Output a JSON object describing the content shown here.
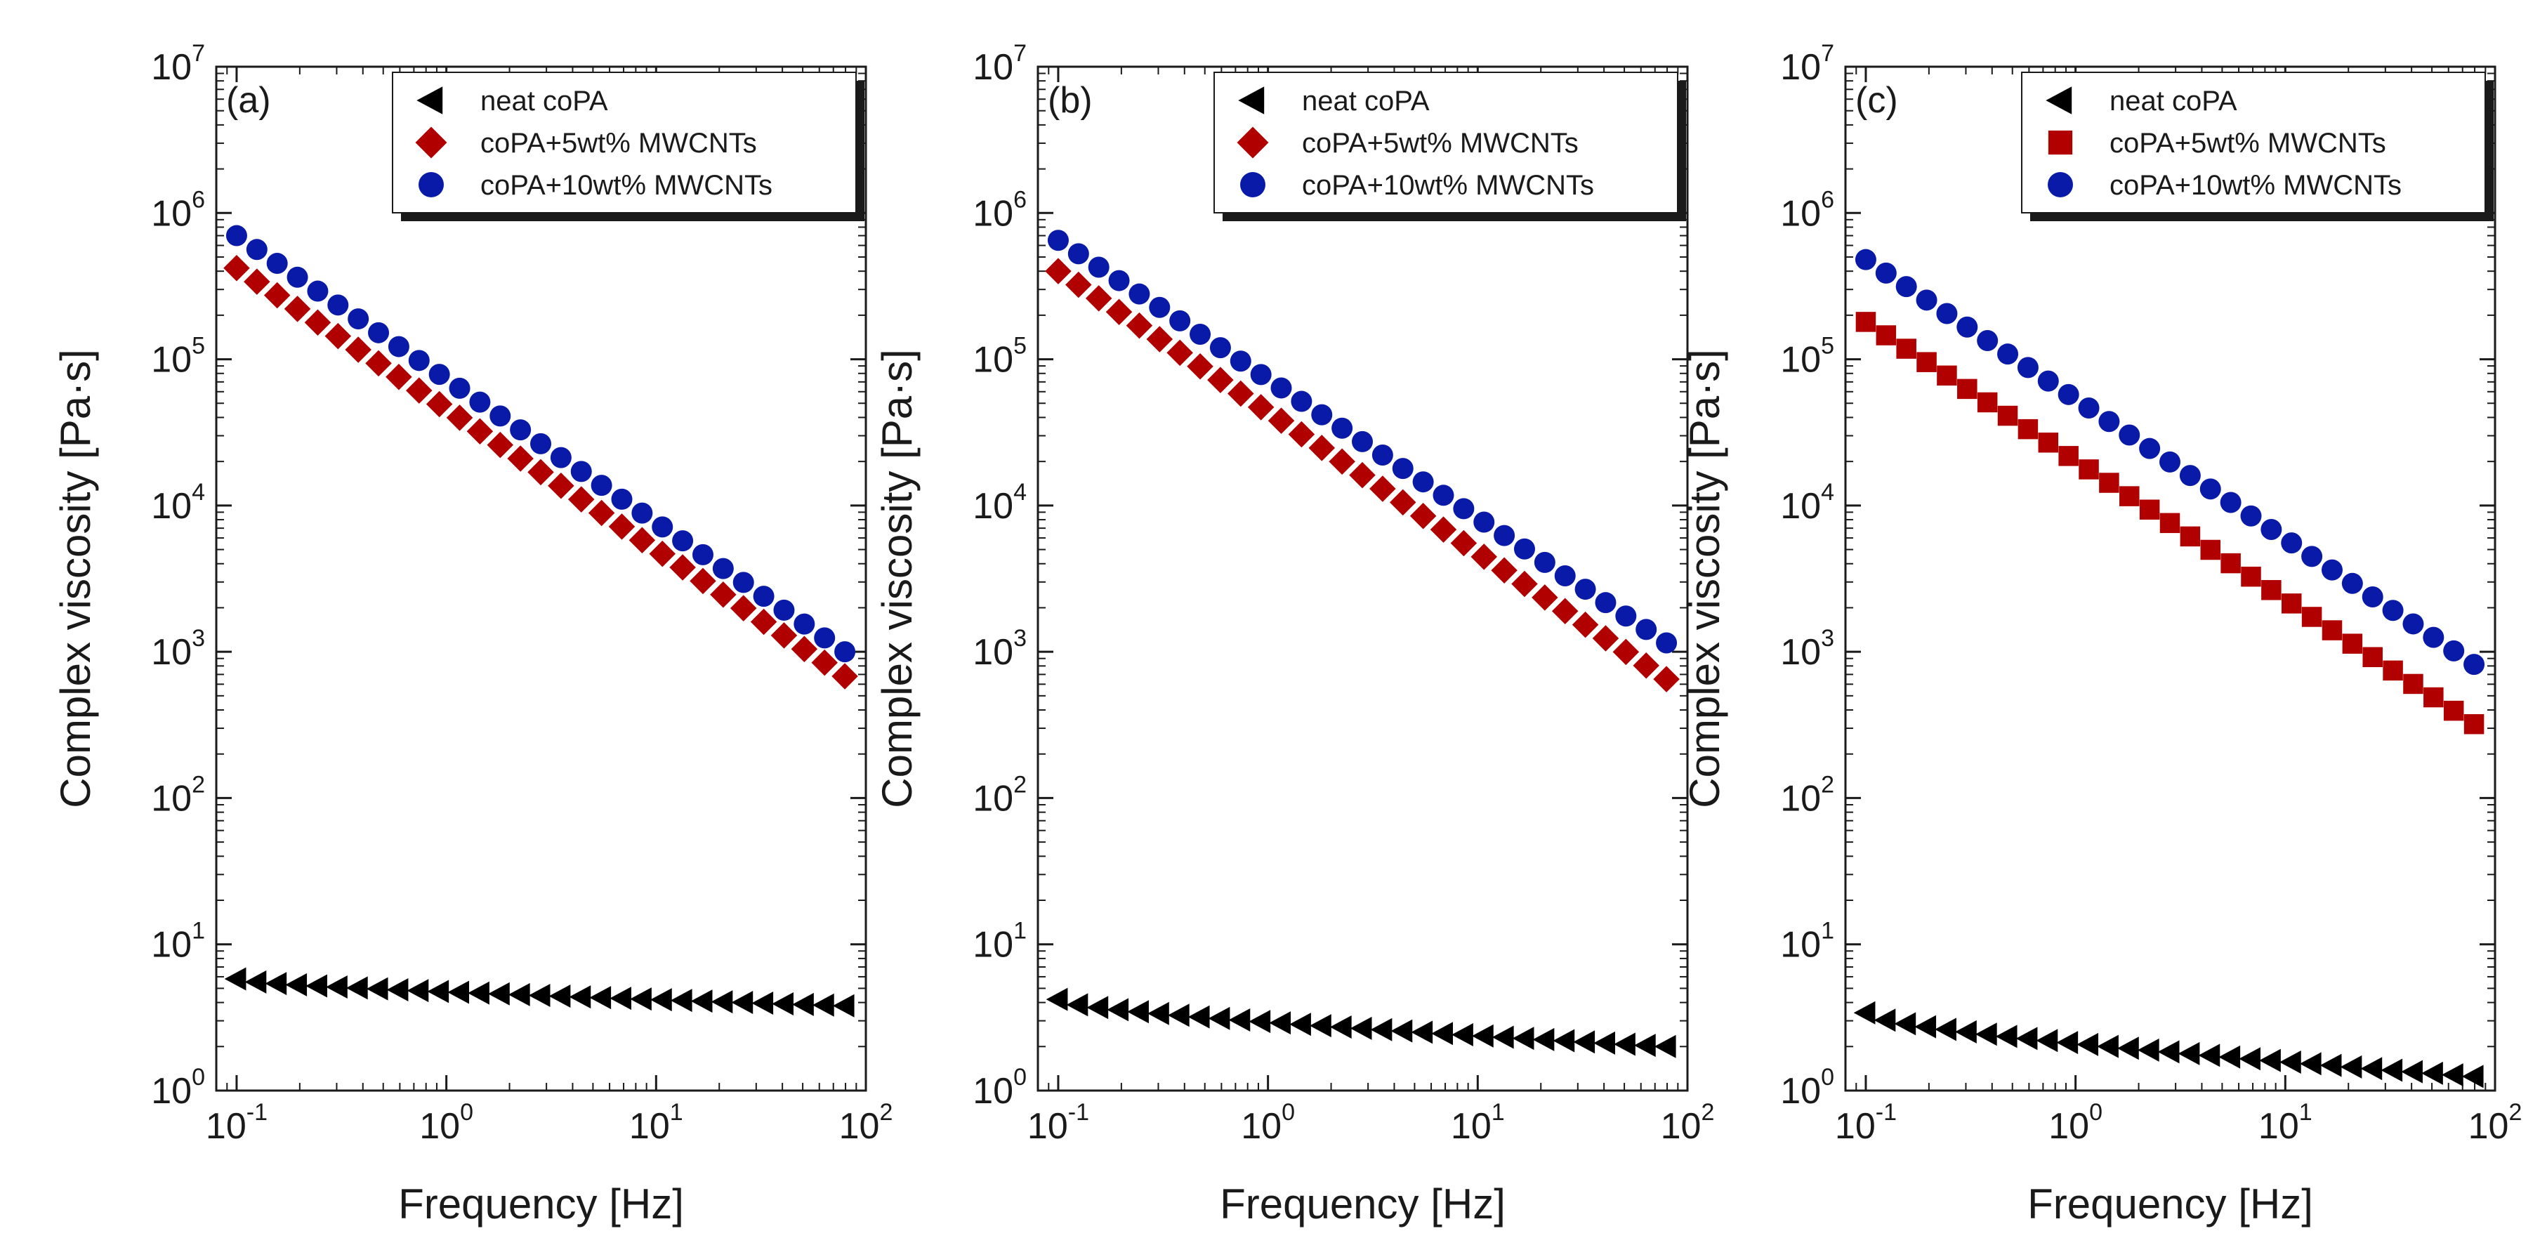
{
  "chart_data": [
    {
      "type": "scatter",
      "panel_label": "(a)",
      "xlabel": "Frequency [Hz]",
      "ylabel": "Complex viscosity [Pa·s]",
      "xscale": "log",
      "yscale": "log",
      "xlim": [
        0.08,
        100
      ],
      "ylim": [
        1,
        10000000
      ],
      "x_ticks": [
        {
          "base": "10",
          "exp": "-1"
        },
        {
          "base": "10",
          "exp": "0"
        },
        {
          "base": "10",
          "exp": "1"
        },
        {
          "base": "10",
          "exp": "2"
        }
      ],
      "y_ticks": [
        {
          "base": "10",
          "exp": "0"
        },
        {
          "base": "10",
          "exp": "1"
        },
        {
          "base": "10",
          "exp": "2"
        },
        {
          "base": "10",
          "exp": "3"
        },
        {
          "base": "10",
          "exp": "4"
        },
        {
          "base": "10",
          "exp": "5"
        },
        {
          "base": "10",
          "exp": "6"
        },
        {
          "base": "10",
          "exp": "7"
        }
      ],
      "legend_position": "top-right",
      "n_points": 31,
      "x_range": [
        0.1,
        79.4
      ],
      "series": [
        {
          "name": "neat coPA",
          "marker": "triangle-left",
          "color": "#000000",
          "y_start": 5.8,
          "y_end": 3.8
        },
        {
          "name": "coPA+5wt% MWCNTs",
          "marker": "diamond",
          "color": "#b00000",
          "y_start": 420000,
          "y_end": 680
        },
        {
          "name": "coPA+10wt% MWCNTs",
          "marker": "circle",
          "color": "#0a1aa8",
          "y_start": 700000,
          "y_end": 1000
        }
      ]
    },
    {
      "type": "scatter",
      "panel_label": "(b)",
      "xlabel": "Frequency [Hz]",
      "ylabel": "Complex viscosity [Pa·s]",
      "xscale": "log",
      "yscale": "log",
      "xlim": [
        0.08,
        100
      ],
      "ylim": [
        1,
        10000000
      ],
      "x_ticks": [
        {
          "base": "10",
          "exp": "-1"
        },
        {
          "base": "10",
          "exp": "0"
        },
        {
          "base": "10",
          "exp": "1"
        },
        {
          "base": "10",
          "exp": "2"
        }
      ],
      "y_ticks": [
        {
          "base": "10",
          "exp": "0"
        },
        {
          "base": "10",
          "exp": "1"
        },
        {
          "base": "10",
          "exp": "2"
        },
        {
          "base": "10",
          "exp": "3"
        },
        {
          "base": "10",
          "exp": "4"
        },
        {
          "base": "10",
          "exp": "5"
        },
        {
          "base": "10",
          "exp": "6"
        },
        {
          "base": "10",
          "exp": "7"
        }
      ],
      "legend_position": "top-right",
      "n_points": 31,
      "x_range": [
        0.1,
        79.4
      ],
      "series": [
        {
          "name": "neat coPA",
          "marker": "triangle-left",
          "color": "#000000",
          "y_start": 4.2,
          "y_end": 2.0
        },
        {
          "name": "coPA+5wt% MWCNTs",
          "marker": "diamond",
          "color": "#b00000",
          "y_start": 400000,
          "y_end": 650
        },
        {
          "name": "coPA+10wt% MWCNTs",
          "marker": "circle",
          "color": "#0a1aa8",
          "y_start": 650000,
          "y_end": 1150
        }
      ]
    },
    {
      "type": "scatter",
      "panel_label": "(c)",
      "xlabel": "Frequency [Hz]",
      "ylabel": "Complex viscosity [Pa·s]",
      "xscale": "log",
      "yscale": "log",
      "xlim": [
        0.08,
        100
      ],
      "ylim": [
        1,
        10000000
      ],
      "x_ticks": [
        {
          "base": "10",
          "exp": "-1"
        },
        {
          "base": "10",
          "exp": "0"
        },
        {
          "base": "10",
          "exp": "1"
        },
        {
          "base": "10",
          "exp": "2"
        }
      ],
      "y_ticks": [
        {
          "base": "10",
          "exp": "0"
        },
        {
          "base": "10",
          "exp": "1"
        },
        {
          "base": "10",
          "exp": "2"
        },
        {
          "base": "10",
          "exp": "3"
        },
        {
          "base": "10",
          "exp": "4"
        },
        {
          "base": "10",
          "exp": "5"
        },
        {
          "base": "10",
          "exp": "6"
        },
        {
          "base": "10",
          "exp": "7"
        }
      ],
      "legend_position": "top-right",
      "n_points": 31,
      "x_range": [
        0.1,
        79.4
      ],
      "series": [
        {
          "name": "neat coPA",
          "marker": "triangle-left",
          "color": "#000000",
          "y_start": 3.4,
          "y_end": 1.25
        },
        {
          "name": "coPA+5wt% MWCNTs",
          "marker": "square",
          "color": "#b00000",
          "y_start": 180000,
          "y_end": 320
        },
        {
          "name": "coPA+10wt% MWCNTs",
          "marker": "circle",
          "color": "#0a1aa8",
          "y_start": 480000,
          "y_end": 820
        }
      ]
    }
  ]
}
